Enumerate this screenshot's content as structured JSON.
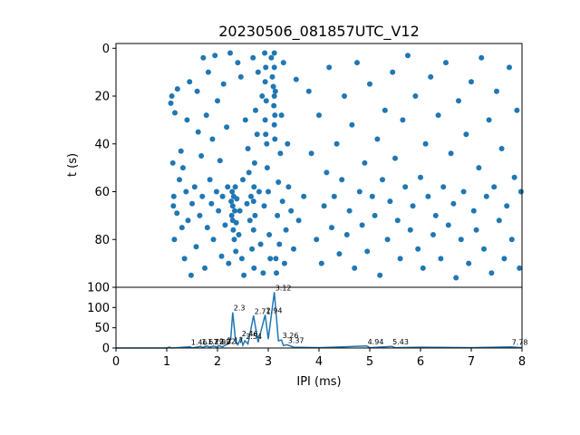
{
  "colors": {
    "series": "#1f77b4",
    "axis": "#000000",
    "background": "#ffffff"
  },
  "chart_data": [
    {
      "type": "scatter",
      "title": "20230506_081857UTC_V12",
      "xlabel": "",
      "ylabel": "t (s)",
      "xlim": [
        0,
        8
      ],
      "ylim": [
        100,
        -2
      ],
      "y_inverted": true,
      "yticks": [
        0,
        20,
        40,
        60,
        80,
        100
      ],
      "grid": false,
      "note": "Raster of inter-pulse intervals over time; dense clusters near IPI 2.3, 2.71, 2.94 and 3.12 ms.",
      "points": [
        [
          1.08,
          23
        ],
        [
          1.1,
          20
        ],
        [
          1.12,
          48
        ],
        [
          1.13,
          66
        ],
        [
          1.14,
          62
        ],
        [
          1.15,
          80
        ],
        [
          1.16,
          27
        ],
        [
          1.2,
          69
        ],
        [
          1.21,
          17
        ],
        [
          1.25,
          55
        ],
        [
          1.28,
          43
        ],
        [
          1.3,
          75
        ],
        [
          1.32,
          50
        ],
        [
          1.35,
          88
        ],
        [
          1.38,
          60
        ],
        [
          1.4,
          30
        ],
        [
          1.42,
          72
        ],
        [
          1.45,
          14
        ],
        [
          1.48,
          95
        ],
        [
          1.5,
          65
        ],
        [
          1.55,
          58
        ],
        [
          1.58,
          83
        ],
        [
          1.6,
          18
        ],
        [
          1.62,
          35
        ],
        [
          1.65,
          70
        ],
        [
          1.68,
          45
        ],
        [
          1.7,
          62
        ],
        [
          1.72,
          4
        ],
        [
          1.75,
          92
        ],
        [
          1.78,
          28
        ],
        [
          1.8,
          75
        ],
        [
          1.82,
          10
        ],
        [
          1.85,
          55
        ],
        [
          1.88,
          65
        ],
        [
          1.9,
          38
        ],
        [
          1.92,
          80
        ],
        [
          1.95,
          3
        ],
        [
          1.98,
          60
        ],
        [
          2.0,
          22
        ],
        [
          2.02,
          68
        ],
        [
          2.05,
          47
        ],
        [
          2.08,
          87
        ],
        [
          2.1,
          62
        ],
        [
          2.12,
          15
        ],
        [
          2.15,
          74
        ],
        [
          2.18,
          33
        ],
        [
          2.2,
          58
        ],
        [
          2.22,
          90
        ],
        [
          2.25,
          2
        ],
        [
          2.27,
          64
        ],
        [
          2.28,
          70
        ],
        [
          2.29,
          60
        ],
        [
          2.3,
          66
        ],
        [
          2.3,
          72
        ],
        [
          2.31,
          76
        ],
        [
          2.32,
          62
        ],
        [
          2.33,
          80
        ],
        [
          2.34,
          68
        ],
        [
          2.35,
          58
        ],
        [
          2.36,
          85
        ],
        [
          2.37,
          73
        ],
        [
          2.38,
          63
        ],
        [
          2.4,
          6
        ],
        [
          2.42,
          78
        ],
        [
          2.44,
          68
        ],
        [
          2.46,
          12
        ],
        [
          2.48,
          88
        ],
        [
          2.5,
          55
        ],
        [
          2.52,
          95
        ],
        [
          2.55,
          30
        ],
        [
          2.58,
          65
        ],
        [
          2.6,
          42
        ],
        [
          2.62,
          52
        ],
        [
          2.64,
          72
        ],
        [
          2.66,
          62
        ],
        [
          2.68,
          84
        ],
        [
          2.7,
          4
        ],
        [
          2.71,
          64
        ],
        [
          2.71,
          76
        ],
        [
          2.72,
          58
        ],
        [
          2.72,
          92
        ],
        [
          2.73,
          48
        ],
        [
          2.74,
          70
        ],
        [
          2.75,
          26
        ],
        [
          2.78,
          36
        ],
        [
          2.8,
          10
        ],
        [
          2.82,
          60
        ],
        [
          2.85,
          82
        ],
        [
          2.88,
          20
        ],
        [
          2.9,
          94
        ],
        [
          2.92,
          66
        ],
        [
          2.93,
          2
        ],
        [
          2.94,
          14
        ],
        [
          2.94,
          30
        ],
        [
          2.95,
          8
        ],
        [
          2.95,
          36
        ],
        [
          2.96,
          22
        ],
        [
          2.97,
          40
        ],
        [
          2.98,
          50
        ],
        [
          3.0,
          60
        ],
        [
          3.02,
          78
        ],
        [
          3.04,
          88
        ],
        [
          3.06,
          4
        ],
        [
          3.08,
          12
        ],
        [
          3.1,
          16
        ],
        [
          3.11,
          24
        ],
        [
          3.12,
          2
        ],
        [
          3.12,
          8
        ],
        [
          3.12,
          20
        ],
        [
          3.12,
          32
        ],
        [
          3.13,
          28
        ],
        [
          3.13,
          38
        ],
        [
          3.14,
          18
        ],
        [
          3.15,
          88
        ],
        [
          3.16,
          94
        ],
        [
          3.18,
          70
        ],
        [
          3.2,
          56
        ],
        [
          3.22,
          82
        ],
        [
          3.24,
          44
        ],
        [
          3.26,
          28
        ],
        [
          3.28,
          64
        ],
        [
          3.3,
          6
        ],
        [
          3.32,
          90
        ],
        [
          3.35,
          76
        ],
        [
          3.38,
          40
        ],
        [
          3.4,
          58
        ],
        [
          3.45,
          68
        ],
        [
          3.5,
          84
        ],
        [
          3.55,
          13
        ],
        [
          3.6,
          72
        ],
        [
          3.7,
          62
        ],
        [
          3.8,
          18
        ],
        [
          3.85,
          44
        ],
        [
          3.95,
          80
        ],
        [
          4.0,
          28
        ],
        [
          4.05,
          90
        ],
        [
          4.1,
          66
        ],
        [
          4.15,
          52
        ],
        [
          4.2,
          8
        ],
        [
          4.25,
          75
        ],
        [
          4.3,
          62
        ],
        [
          4.35,
          40
        ],
        [
          4.4,
          86
        ],
        [
          4.45,
          55
        ],
        [
          4.5,
          20
        ],
        [
          4.55,
          78
        ],
        [
          4.6,
          68
        ],
        [
          4.65,
          32
        ],
        [
          4.7,
          92
        ],
        [
          4.75,
          6
        ],
        [
          4.8,
          60
        ],
        [
          4.85,
          74
        ],
        [
          4.9,
          48
        ],
        [
          4.95,
          85
        ],
        [
          5.0,
          15
        ],
        [
          5.05,
          62
        ],
        [
          5.1,
          70
        ],
        [
          5.15,
          38
        ],
        [
          5.2,
          95
        ],
        [
          5.25,
          55
        ],
        [
          5.3,
          26
        ],
        [
          5.35,
          80
        ],
        [
          5.4,
          64
        ],
        [
          5.45,
          10
        ],
        [
          5.5,
          46
        ],
        [
          5.55,
          72
        ],
        [
          5.6,
          88
        ],
        [
          5.65,
          30
        ],
        [
          5.7,
          58
        ],
        [
          5.75,
          3
        ],
        [
          5.8,
          76
        ],
        [
          5.85,
          66
        ],
        [
          5.9,
          20
        ],
        [
          5.95,
          84
        ],
        [
          6.0,
          54
        ],
        [
          6.05,
          92
        ],
        [
          6.1,
          40
        ],
        [
          6.15,
          62
        ],
        [
          6.2,
          12
        ],
        [
          6.25,
          78
        ],
        [
          6.3,
          70
        ],
        [
          6.35,
          28
        ],
        [
          6.4,
          88
        ],
        [
          6.45,
          58
        ],
        [
          6.5,
          6
        ],
        [
          6.55,
          74
        ],
        [
          6.6,
          44
        ],
        [
          6.65,
          65
        ],
        [
          6.7,
          96
        ],
        [
          6.75,
          22
        ],
        [
          6.8,
          80
        ],
        [
          6.85,
          60
        ],
        [
          6.9,
          36
        ],
        [
          6.95,
          90
        ],
        [
          7.0,
          14
        ],
        [
          7.05,
          68
        ],
        [
          7.1,
          76
        ],
        [
          7.15,
          50
        ],
        [
          7.2,
          4
        ],
        [
          7.25,
          84
        ],
        [
          7.3,
          62
        ],
        [
          7.35,
          30
        ],
        [
          7.4,
          94
        ],
        [
          7.45,
          58
        ],
        [
          7.5,
          18
        ],
        [
          7.55,
          72
        ],
        [
          7.6,
          42
        ],
        [
          7.65,
          88
        ],
        [
          7.7,
          66
        ],
        [
          7.75,
          8
        ],
        [
          7.8,
          80
        ],
        [
          7.85,
          54
        ],
        [
          7.9,
          26
        ],
        [
          7.95,
          92
        ],
        [
          7.98,
          60
        ]
      ]
    },
    {
      "type": "line",
      "xlabel": "IPI (ms)",
      "ylabel": "",
      "xlim": [
        0,
        8
      ],
      "ylim": [
        0,
        150
      ],
      "xticks": [
        0,
        1,
        2,
        3,
        4,
        5,
        6,
        7,
        8
      ],
      "yticks": [
        0,
        50,
        100
      ],
      "grid": false,
      "x": [
        0.0,
        1.0,
        1.05,
        1.1,
        1.46,
        1.5,
        1.67,
        1.7,
        1.79,
        1.85,
        1.92,
        2.0,
        2.02,
        2.1,
        2.17,
        2.2,
        2.26,
        2.3,
        2.36,
        2.4,
        2.46,
        2.5,
        2.54,
        2.6,
        2.71,
        2.8,
        2.94,
        3.0,
        3.12,
        3.2,
        3.26,
        3.3,
        3.37,
        3.5,
        4.0,
        4.94,
        5.0,
        5.43,
        5.5,
        6.0,
        7.0,
        7.78,
        8.0
      ],
      "y": [
        0,
        0,
        2,
        0,
        3,
        0,
        4,
        1,
        5,
        2,
        5,
        2,
        6,
        3,
        8,
        10,
        22,
        88,
        12,
        8,
        25,
        7,
        18,
        10,
        80,
        14,
        82,
        22,
        138,
        18,
        20,
        6,
        8,
        2,
        1,
        5,
        1,
        4,
        1,
        2,
        1,
        3,
        1
      ],
      "peak_labels": [
        {
          "x": 2.3,
          "y": 88,
          "label": "2.3"
        },
        {
          "x": 2.71,
          "y": 80,
          "label": "2.71"
        },
        {
          "x": 2.94,
          "y": 82,
          "label": "2.94"
        },
        {
          "x": 3.12,
          "y": 138,
          "label": "3.12"
        },
        {
          "x": 2.46,
          "y": 25,
          "label": "2.46"
        },
        {
          "x": 2.54,
          "y": 18,
          "label": "2.54"
        },
        {
          "x": 3.26,
          "y": 20,
          "label": "3.26"
        },
        {
          "x": 3.37,
          "y": 8,
          "label": "3.37"
        },
        {
          "x": 1.46,
          "y": 3,
          "label": "1.46"
        },
        {
          "x": 1.67,
          "y": 4,
          "label": "1.67"
        },
        {
          "x": 1.79,
          "y": 5,
          "label": "1.79"
        },
        {
          "x": 1.92,
          "y": 5,
          "label": "1.92"
        },
        {
          "x": 2.02,
          "y": 6,
          "label": "2.02"
        },
        {
          "x": 2.17,
          "y": 8,
          "label": "2.17"
        },
        {
          "x": 4.94,
          "y": 5,
          "label": "4.94"
        },
        {
          "x": 5.43,
          "y": 4,
          "label": "5.43"
        },
        {
          "x": 7.78,
          "y": 3,
          "label": "7.78"
        }
      ]
    }
  ]
}
